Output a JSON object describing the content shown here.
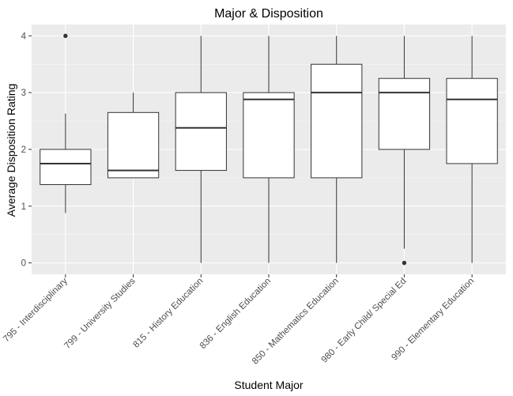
{
  "chart_data": {
    "type": "boxplot",
    "title": "Major & Disposition",
    "xlabel": "Student Major",
    "ylabel": "Average Disposition Rating",
    "ylim": [
      -0.2,
      4.2
    ],
    "yticks": [
      0,
      1,
      2,
      3,
      4
    ],
    "grid": true,
    "colors": {
      "panel_background": "#ebebeb",
      "box_fill": "#ffffff",
      "box_stroke": "#333333"
    },
    "categories": [
      "795 - Interdisciplinary",
      "799 - University Studies",
      "815 - History Education",
      "836 - English Education",
      "850 - Mathematics Education",
      "980 - Early Child/ Special Ed",
      "990 - Elementary Education"
    ],
    "boxes": [
      {
        "category": "795 - Interdisciplinary",
        "lower_whisker": 0.88,
        "q1": 1.38,
        "median": 1.75,
        "q3": 2.0,
        "upper_whisker": 2.63,
        "outliers": [
          4.0
        ]
      },
      {
        "category": "799 - University Studies",
        "lower_whisker": 1.5,
        "q1": 1.5,
        "median": 1.63,
        "q3": 2.65,
        "upper_whisker": 3.0,
        "outliers": []
      },
      {
        "category": "815 - History Education",
        "lower_whisker": 0.0,
        "q1": 1.63,
        "median": 2.38,
        "q3": 3.0,
        "upper_whisker": 4.0,
        "outliers": []
      },
      {
        "category": "836 - English Education",
        "lower_whisker": 0.0,
        "q1": 1.5,
        "median": 2.88,
        "q3": 3.0,
        "upper_whisker": 4.0,
        "outliers": []
      },
      {
        "category": "850 - Mathematics Education",
        "lower_whisker": 0.0,
        "q1": 1.5,
        "median": 3.0,
        "q3": 3.5,
        "upper_whisker": 4.0,
        "outliers": []
      },
      {
        "category": "980 - Early Child/ Special Ed",
        "lower_whisker": 0.25,
        "q1": 2.0,
        "median": 3.0,
        "q3": 3.25,
        "upper_whisker": 4.0,
        "outliers": [
          0.0
        ]
      },
      {
        "category": "990 - Elementary Education",
        "lower_whisker": 0.0,
        "q1": 1.75,
        "median": 2.88,
        "q3": 3.25,
        "upper_whisker": 4.0,
        "outliers": []
      }
    ]
  }
}
